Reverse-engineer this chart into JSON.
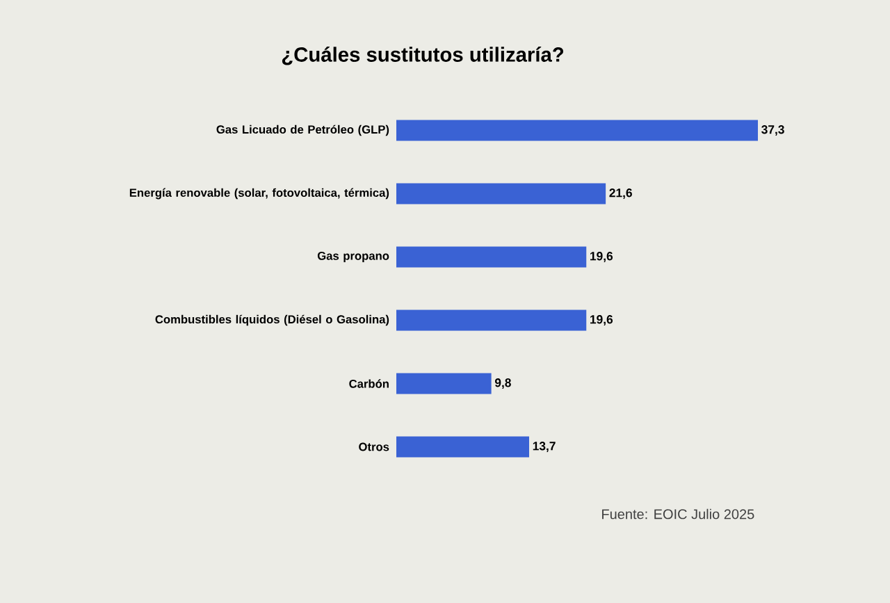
{
  "chart_data": {
    "type": "bar",
    "orientation": "horizontal",
    "title": "¿Cuáles sustitutos utilizaría?",
    "categories": [
      "Gas Licuado de Petróleo (GLP)",
      "Energía renovable (solar, fotovoltaica, térmica)",
      "Gas propano",
      "Combustibles líquidos (Diésel o Gasolina)",
      "Carbón",
      "Otros"
    ],
    "values": [
      37.3,
      21.6,
      19.6,
      19.6,
      9.8,
      13.7
    ],
    "value_labels": [
      "37,3",
      "21,6",
      "19,6",
      "19,6",
      "9,8",
      "13,7"
    ],
    "color": "#3a62d4",
    "annotations": [
      "Fuente: EOIC Julio 2025"
    ]
  }
}
